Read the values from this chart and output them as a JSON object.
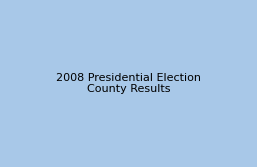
{
  "figsize": [
    2.57,
    1.67
  ],
  "dpi": 100,
  "background_color": "#a8c8e8",
  "land_color": "#f0e8d0",
  "obama_dark": "#1133aa",
  "obama_mid": "#4466cc",
  "obama_light": "#8899cc",
  "mccain_dark": "#aa0000",
  "mccain_mid": "#cc2222",
  "mccain_light": "#dd8888",
  "edge_color": "#ffffff",
  "inset_border": "#888888"
}
